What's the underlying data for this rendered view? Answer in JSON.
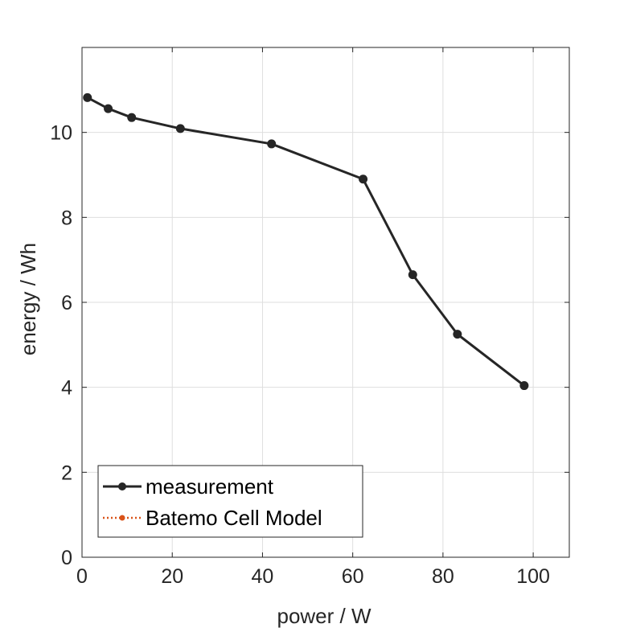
{
  "chart_data": {
    "type": "line",
    "title": "",
    "xlabel": "power / W",
    "ylabel": "energy / Wh",
    "xlim": [
      0,
      108
    ],
    "ylim": [
      0,
      12
    ],
    "xticks": [
      0,
      20,
      40,
      60,
      80,
      100
    ],
    "yticks": [
      0,
      2,
      4,
      6,
      8,
      10
    ],
    "grid": true,
    "legend_position": "bottom-left",
    "series": [
      {
        "name": "measurement",
        "color": "#262626",
        "line_style": "solid",
        "marker": "circle",
        "x": [
          1.2,
          5.8,
          11.0,
          21.8,
          42.0,
          62.3,
          73.3,
          83.2,
          98.0
        ],
        "y": [
          10.82,
          10.56,
          10.35,
          10.09,
          9.73,
          8.9,
          6.65,
          5.25,
          4.04
        ]
      },
      {
        "name": "Batemo Cell Model",
        "color": "#D95319",
        "line_style": "dotted",
        "marker": "circle",
        "x": [],
        "y": []
      }
    ]
  }
}
